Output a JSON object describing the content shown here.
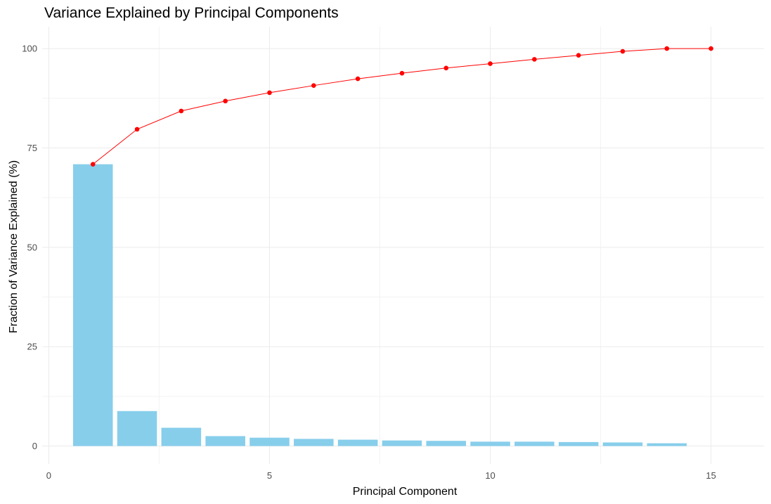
{
  "chart_data": {
    "type": "bar",
    "title": "Variance Explained by Principal Components",
    "xlabel": "Principal Component",
    "ylabel": "Fraction of Variance Explained (%)",
    "x": [
      1,
      2,
      3,
      4,
      5,
      6,
      7,
      8,
      9,
      10,
      11,
      12,
      13,
      14,
      15
    ],
    "series": [
      {
        "type": "bar",
        "values": [
          70.9,
          8.8,
          4.6,
          2.5,
          2.1,
          1.8,
          1.6,
          1.4,
          1.3,
          1.1,
          1.1,
          1.0,
          0.9,
          0.7,
          0.0
        ],
        "color": "#87CEEB"
      },
      {
        "type": "line",
        "values": [
          70.9,
          79.7,
          84.3,
          86.8,
          88.9,
          90.7,
          92.4,
          93.8,
          95.1,
          96.2,
          97.3,
          98.3,
          99.3,
          100.0,
          100.0
        ],
        "color": "#FF0000"
      }
    ],
    "xlim": [
      -0.15,
      16.2
    ],
    "ylim": [
      -4.5,
      105.5
    ],
    "x_ticks": [
      0,
      5,
      10,
      15
    ],
    "x_tick_labels": [
      "0",
      "5",
      "10",
      "15"
    ],
    "y_ticks": [
      0,
      25,
      50,
      75,
      100
    ],
    "y_tick_labels": [
      "0",
      "25",
      "50",
      "75",
      "100"
    ],
    "grid": true,
    "legend": "none",
    "colors": {
      "bar": "#87CEEB",
      "line": "#FF0000",
      "grid_major": "#EBEBEB",
      "grid_minor": "#F3F3F3"
    }
  }
}
